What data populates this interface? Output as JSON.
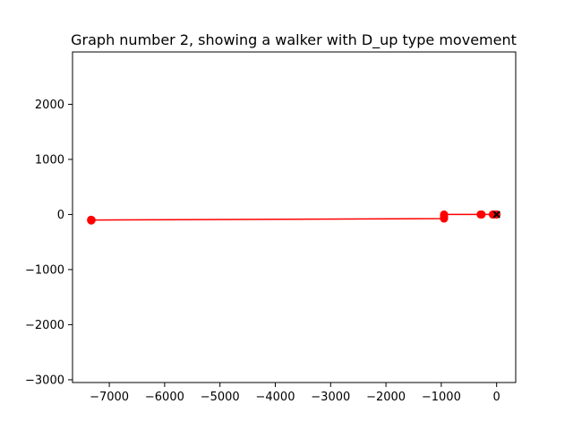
{
  "chart_data": {
    "type": "scatter",
    "title": "Graph number 2, showing a walker with D_up type movement",
    "xlabel": "",
    "ylabel": "",
    "xlim": [
      -7665,
      345
    ],
    "ylim": [
      -3050,
      2950
    ],
    "x_ticks": [
      -7000,
      -6000,
      -5000,
      -4000,
      -3000,
      -2000,
      -1000,
      0
    ],
    "x_tick_labels": [
      "−7000",
      "−6000",
      "−5000",
      "−4000",
      "−3000",
      "−2000",
      "−1000",
      "0"
    ],
    "y_ticks": [
      -3000,
      -2000,
      -1000,
      0,
      1000,
      2000
    ],
    "y_tick_labels": [
      "−3000",
      "−2000",
      "−1000",
      "0",
      "1000",
      "2000"
    ],
    "grid": false,
    "series": [
      {
        "color": "#ff0000",
        "marker": "circle",
        "line": true,
        "points": [
          {
            "x": 0,
            "y": 0
          },
          {
            "x": -10,
            "y": 0
          },
          {
            "x": -60,
            "y": 0
          },
          {
            "x": -70,
            "y": 0
          },
          {
            "x": -270,
            "y": 0
          },
          {
            "x": -280,
            "y": 0
          },
          {
            "x": -290,
            "y": 0
          },
          {
            "x": -950,
            "y": 0
          },
          {
            "x": -950,
            "y": -20
          },
          {
            "x": -950,
            "y": -40
          },
          {
            "x": -950,
            "y": -60
          },
          {
            "x": -950,
            "y": -75
          },
          {
            "x": -7320,
            "y": -100
          },
          {
            "x": -7330,
            "y": -95
          },
          {
            "x": -7330,
            "y": -105
          },
          {
            "x": -7325,
            "y": -110
          }
        ]
      }
    ],
    "end_marker": {
      "x": 0,
      "y": 0,
      "symbol": "x",
      "color": "#000000"
    }
  }
}
